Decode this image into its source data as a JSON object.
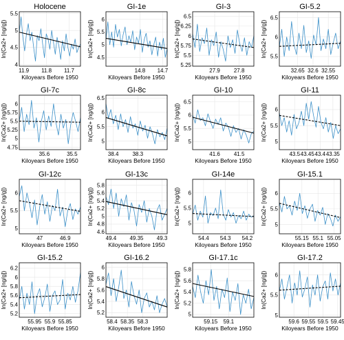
{
  "chart_data": [
    {
      "type": "line",
      "title": "Holocene",
      "xlabel": "Kiloyears Before 1950",
      "ylabel": "ln(Ca2+ [ng/g])",
      "xlim": [
        11.92,
        11.65
      ],
      "xticks": [
        "11.9",
        "11.8",
        "11.7"
      ],
      "ylim": [
        3.95,
        5.55
      ],
      "yticks": [
        "4",
        "4.5",
        "5",
        "5.5"
      ],
      "trend": {
        "y_start": 4.95,
        "y_end": 4.52,
        "style": "solid"
      },
      "series": [
        {
          "values": [
            4.95,
            5.4,
            4.8,
            4.4,
            4.9,
            5.2,
            4.7,
            4.95,
            4.5,
            4.1,
            4.85,
            4.7,
            5.05,
            4.6,
            4.2,
            4.9,
            4.75,
            4.45,
            5.0,
            4.65,
            4.3,
            4.8,
            4.55,
            4.15,
            4.7,
            4.4,
            4.9,
            4.5,
            4.25,
            4.6,
            4.45,
            4.75,
            4.35,
            4.5,
            4.6
          ]
        }
      ]
    },
    {
      "type": "line",
      "title": "GI-1e",
      "xlabel": "Kiloyears Before 1950",
      "ylabel": "ln(Ca2+ [ng/g])",
      "xlim": [
        14.95,
        14.68
      ],
      "xticks": [
        "14.8",
        "14.7"
      ],
      "ylim": [
        4.15,
        6.3
      ],
      "yticks": [
        "4.5",
        "5",
        "5.5",
        "6"
      ],
      "trend": {
        "y_start": 5.25,
        "y_end": 4.85,
        "style": "solid"
      },
      "series": [
        {
          "values": [
            5.2,
            5.9,
            5.0,
            5.5,
            4.9,
            5.8,
            5.3,
            5.6,
            4.95,
            5.4,
            5.7,
            5.0,
            5.35,
            5.1,
            5.55,
            4.8,
            5.3,
            5.05,
            5.6,
            4.7,
            5.2,
            5.45,
            4.9,
            5.15,
            4.6,
            5.0,
            5.3,
            4.55,
            5.1,
            4.8,
            5.25,
            4.5,
            4.85
          ]
        }
      ]
    },
    {
      "type": "line",
      "title": "GI-3",
      "xlabel": "Kiloyears Before 1950",
      "ylabel": "ln(Ca2+ [ng/g])",
      "xlim": [
        27.99,
        27.74
      ],
      "xticks": [
        "27.9",
        "27.8"
      ],
      "ylim": [
        5.22,
        6.62
      ],
      "yticks": [
        "5.25",
        "5.5",
        "5.75",
        "6",
        "6.25",
        "6.5"
      ],
      "trend": {
        "y_start": 5.92,
        "y_end": 5.7,
        "style": "dashed"
      },
      "series": [
        {
          "values": [
            6.05,
            5.7,
            6.3,
            5.6,
            5.95,
            5.8,
            6.2,
            5.5,
            5.9,
            5.75,
            6.1,
            5.45,
            5.85,
            5.65,
            5.35,
            6.0,
            5.7,
            5.9,
            5.55,
            6.15,
            5.8,
            5.6,
            5.95,
            5.5,
            5.85,
            5.7,
            6.0
          ]
        }
      ]
    },
    {
      "type": "line",
      "title": "GI-5.2",
      "xlabel": "Kiloyears Before 1950",
      "ylabel": "ln(Ca2+ [ng/g])",
      "xlim": [
        32.71,
        32.51
      ],
      "xticks": [
        "32.65",
        "32.6",
        "32.55"
      ],
      "ylim": [
        5.25,
        6.65
      ],
      "yticks": [
        "5.5",
        "6",
        "6.5"
      ],
      "trend": {
        "y_start": 5.76,
        "y_end": 5.84,
        "style": "dashed"
      },
      "series": [
        {
          "values": [
            5.75,
            6.2,
            5.5,
            6.0,
            5.65,
            6.4,
            5.8,
            5.55,
            6.1,
            5.7,
            6.3,
            5.6,
            5.9,
            5.45,
            6.05,
            5.8,
            6.5,
            5.65,
            5.95,
            5.7,
            6.2,
            5.55,
            5.85,
            6.1,
            5.7,
            5.9
          ]
        }
      ]
    },
    {
      "type": "line",
      "title": "GI-7c",
      "xlabel": "Kiloyears Before 1950",
      "ylabel": "ln(Ca2+ [ng/g])",
      "xlim": [
        35.69,
        35.47
      ],
      "xticks": [
        "35.6",
        "35.5"
      ],
      "ylim": [
        4.68,
        6.25
      ],
      "yticks": [
        "4.75",
        "5",
        "5.25",
        "5.5",
        "5.75",
        "6"
      ],
      "trend": {
        "y_start": 5.5,
        "y_end": 5.47,
        "style": "dashed"
      },
      "series": [
        {
          "values": [
            5.5,
            5.9,
            5.2,
            5.7,
            5.4,
            6.1,
            5.3,
            5.6,
            4.9,
            5.5,
            5.8,
            5.25,
            5.65,
            5.35,
            6.0,
            5.45,
            5.1,
            5.7,
            5.3,
            5.55,
            4.85,
            5.4,
            5.75,
            5.5,
            5.2,
            5.6
          ]
        }
      ]
    },
    {
      "type": "line",
      "title": "GI-8c",
      "xlabel": "Kiloyears Before 1950",
      "ylabel": "ln(Ca2+ [ng/g])",
      "xlim": [
        38.43,
        38.18
      ],
      "xticks": [
        "38.4",
        "38.3"
      ],
      "ylim": [
        4.7,
        6.6
      ],
      "yticks": [
        "5",
        "5.5",
        "6",
        "6.5"
      ],
      "trend": {
        "y_start": 5.82,
        "y_end": 5.18,
        "style": "solid"
      },
      "series": [
        {
          "values": [
            6.3,
            5.8,
            6.1,
            5.6,
            5.9,
            5.4,
            5.95,
            5.5,
            5.75,
            5.3,
            5.85,
            5.45,
            5.6,
            5.2,
            5.7,
            5.35,
            5.55,
            5.1,
            5.5,
            5.25,
            4.9,
            5.4,
            5.15,
            5.3,
            5.05,
            5.45
          ]
        }
      ]
    },
    {
      "type": "line",
      "title": "GI-10",
      "xlabel": "Kiloyears Before 1950",
      "ylabel": "ln(Ca2+ [ng/g])",
      "xlim": [
        41.69,
        41.44
      ],
      "xticks": [
        "41.6",
        "41.5"
      ],
      "ylim": [
        4.7,
        6.75
      ],
      "yticks": [
        "5",
        "5.5",
        "6",
        "6.5"
      ],
      "trend": {
        "y_start": 5.92,
        "y_end": 5.32,
        "style": "solid"
      },
      "series": [
        {
          "values": [
            6.0,
            5.7,
            6.2,
            5.8,
            5.9,
            5.6,
            6.05,
            5.75,
            5.5,
            5.85,
            5.65,
            5.9,
            5.4,
            5.7,
            5.55,
            5.2,
            5.6,
            5.35,
            5.5,
            5.1,
            5.45,
            5.25,
            4.95,
            5.3,
            5.4
          ]
        }
      ]
    },
    {
      "type": "line",
      "title": "GI-11",
      "xlabel": "Kiloyears Before 1950",
      "ylabel": "ln(Ca2+ [ng/g])",
      "xlim": [
        43.56,
        43.32
      ],
      "xticks": [
        "43.5",
        "43.45",
        "43.4",
        "43.35"
      ],
      "ylim": [
        4.75,
        6.45
      ],
      "yticks": [
        "5",
        "5.5",
        "6"
      ],
      "trend": {
        "y_start": 5.82,
        "y_end": 5.5,
        "style": "dashed"
      },
      "series": [
        {
          "values": [
            5.9,
            5.5,
            5.75,
            5.3,
            5.65,
            5.2,
            5.85,
            5.4,
            5.6,
            5.95,
            5.5,
            6.2,
            5.7,
            6.25,
            5.8,
            5.45,
            6.1,
            5.6,
            5.4,
            5.75,
            5.3,
            5.6,
            5.1,
            5.5,
            5.25,
            5.4
          ]
        }
      ]
    },
    {
      "type": "line",
      "title": "GI-12c",
      "xlabel": "Kiloyears Before 1950",
      "ylabel": "ln(Ca2+ [ng/g])",
      "xlim": [
        47.08,
        46.84
      ],
      "xticks": [
        "47",
        "46.9"
      ],
      "ylim": [
        4.85,
        6.38
      ],
      "yticks": [
        "5",
        "5.5",
        "6"
      ],
      "trend": {
        "y_start": 5.78,
        "y_end": 5.48,
        "style": "dashed"
      },
      "series": [
        {
          "values": [
            5.9,
            6.2,
            5.5,
            6.0,
            5.7,
            5.3,
            5.8,
            5.1,
            5.6,
            5.95,
            5.4,
            5.75,
            5.2,
            5.65,
            5.5,
            6.1,
            5.35,
            5.6,
            5.05,
            5.5,
            5.7,
            5.25,
            5.55,
            5.4,
            5.6
          ]
        }
      ]
    },
    {
      "type": "line",
      "title": "GI-13c",
      "xlabel": "Kiloyears Before 1950",
      "ylabel": "ln(Ca2+ [ng/g])",
      "xlim": [
        49.41,
        49.29
      ],
      "xticks": [
        "49.4",
        "49.35",
        "49.3"
      ],
      "ylim": [
        4.55,
        5.95
      ],
      "yticks": [
        "4.6",
        "4.8",
        "5",
        "5.2",
        "5.4",
        "5.6",
        "5.8"
      ],
      "trend": {
        "y_start": 5.38,
        "y_end": 5.04,
        "style": "solid"
      },
      "series": [
        {
          "values": [
            5.5,
            5.3,
            5.7,
            5.2,
            5.6,
            5.0,
            5.45,
            5.25,
            5.55,
            4.9,
            5.35,
            5.15,
            4.75,
            5.3,
            5.1,
            5.4,
            4.85,
            5.2,
            5.0,
            4.65,
            5.15,
            5.3,
            4.9,
            5.05,
            5.2
          ]
        }
      ]
    },
    {
      "type": "line",
      "title": "GI-14e",
      "xlabel": "Kiloyears Before 1950",
      "ylabel": "ln(Ca2+ [ng/g])",
      "xlim": [
        54.45,
        54.17
      ],
      "xticks": [
        "54.4",
        "54.3",
        "54.2"
      ],
      "ylim": [
        4.65,
        6.45
      ],
      "yticks": [
        "5",
        "5.5",
        "6"
      ],
      "trend": {
        "y_start": 5.32,
        "y_end": 5.22,
        "style": "dashed"
      },
      "series": [
        {
          "values": [
            5.3,
            5.6,
            5.1,
            5.4,
            5.2,
            5.9,
            5.0,
            5.35,
            5.25,
            5.5,
            5.15,
            6.1,
            5.3,
            5.1,
            5.45,
            5.2,
            5.35,
            5.0,
            5.25,
            5.15,
            5.4,
            5.1,
            5.3,
            5.2,
            5.25
          ]
        }
      ]
    },
    {
      "type": "line",
      "title": "GI-15.1",
      "xlabel": "Kiloyears Before 1950",
      "ylabel": "ln(Ca2+ [ng/g])",
      "xlim": [
        55.22,
        55.03
      ],
      "xticks": [
        "55.15",
        "55.1",
        "55.05"
      ],
      "ylim": [
        4.7,
        6.45
      ],
      "yticks": [
        "5",
        "5.5",
        "6"
      ],
      "trend": {
        "y_start": 5.68,
        "y_end": 5.22,
        "style": "dashed"
      },
      "series": [
        {
          "values": [
            5.7,
            5.4,
            5.9,
            5.5,
            5.6,
            5.3,
            5.75,
            5.45,
            6.0,
            5.35,
            5.6,
            5.2,
            5.5,
            5.65,
            5.1,
            5.45,
            5.3,
            5.55,
            5.0,
            5.35,
            5.2,
            4.95,
            5.3,
            5.1,
            5.25
          ]
        }
      ]
    },
    {
      "type": "line",
      "title": "GI-15.2",
      "xlabel": "Kiloyears Before 1950",
      "ylabel": "ln(Ca2+ [ng/g])",
      "xlim": [
        56.0,
        55.8
      ],
      "xticks": [
        "55.95",
        "55.9",
        "55.85"
      ],
      "ylim": [
        5.12,
        6.32
      ],
      "yticks": [
        "5.2",
        "5.4",
        "5.6",
        "5.8",
        "6",
        "6.2"
      ],
      "trend": {
        "y_start": 5.55,
        "y_end": 5.62,
        "style": "dashed"
      },
      "series": [
        {
          "values": [
            5.5,
            5.8,
            5.3,
            5.65,
            5.4,
            5.9,
            5.2,
            5.6,
            5.75,
            5.35,
            5.55,
            5.85,
            5.25,
            5.6,
            5.7,
            5.4,
            5.5,
            5.95,
            5.3,
            5.65,
            5.5,
            5.8,
            5.45,
            5.7,
            6.1
          ]
        }
      ]
    },
    {
      "type": "line",
      "title": "GI-16.2",
      "xlabel": "Kiloyears Before 1950",
      "ylabel": "ln(Ca2+ [ng/g])",
      "xlim": [
        58.42,
        58.22
      ],
      "xticks": [
        "58.4",
        "58.35",
        "58.3"
      ],
      "ylim": [
        5.12,
        6.08
      ],
      "yticks": [
        "5.2",
        "5.4",
        "5.6",
        "5.8",
        "6"
      ],
      "trend": {
        "y_start": 5.66,
        "y_end": 5.3,
        "style": "solid"
      },
      "series": [
        {
          "values": [
            5.7,
            5.9,
            5.5,
            5.8,
            5.4,
            5.65,
            5.95,
            5.45,
            5.6,
            5.3,
            5.75,
            5.5,
            5.35,
            5.6,
            5.2,
            5.45,
            5.55,
            5.3,
            5.4,
            5.25,
            5.5,
            5.2,
            5.35,
            5.45,
            5.3
          ]
        }
      ]
    },
    {
      "type": "line",
      "title": "GI-17.1c",
      "xlabel": "Kiloyears Before 1950",
      "ylabel": "ln(Ca2+ [ng/g])",
      "xlim": [
        59.2,
        59.03
      ],
      "xticks": [
        "59.15",
        "59.1"
      ],
      "ylim": [
        4.95,
        5.92
      ],
      "yticks": [
        "5",
        "5.2",
        "5.4",
        "5.6",
        "5.8"
      ],
      "trend": {
        "y_start": 5.55,
        "y_end": 5.32,
        "style": "solid"
      },
      "series": [
        {
          "values": [
            5.5,
            5.3,
            5.7,
            5.4,
            5.2,
            5.6,
            5.35,
            5.8,
            5.25,
            5.5,
            5.1,
            5.45,
            5.3,
            5.65,
            5.05,
            5.4,
            5.25,
            5.55,
            5.0,
            5.35,
            5.2,
            5.45,
            5.1,
            5.3
          ]
        }
      ]
    },
    {
      "type": "line",
      "title": "GI-17.2",
      "xlabel": "Kiloyears Before 1950",
      "ylabel": "ln(Ca2+ [ng/g])",
      "xlim": [
        59.65,
        59.44
      ],
      "xticks": [
        "59.6",
        "59.55",
        "59.5",
        "59.45"
      ],
      "ylim": [
        4.95,
        6.3
      ],
      "yticks": [
        "5",
        "5.5",
        "6"
      ],
      "trend": {
        "y_start": 5.62,
        "y_end": 5.72,
        "style": "dashed"
      },
      "series": [
        {
          "values": [
            5.6,
            5.9,
            5.4,
            5.7,
            6.0,
            5.3,
            5.8,
            5.5,
            6.1,
            5.45,
            5.65,
            5.95,
            5.2,
            5.75,
            5.5,
            6.0,
            5.35,
            5.7,
            5.85,
            5.4,
            6.05,
            5.6,
            5.9,
            5.5,
            5.8
          ]
        }
      ]
    }
  ]
}
